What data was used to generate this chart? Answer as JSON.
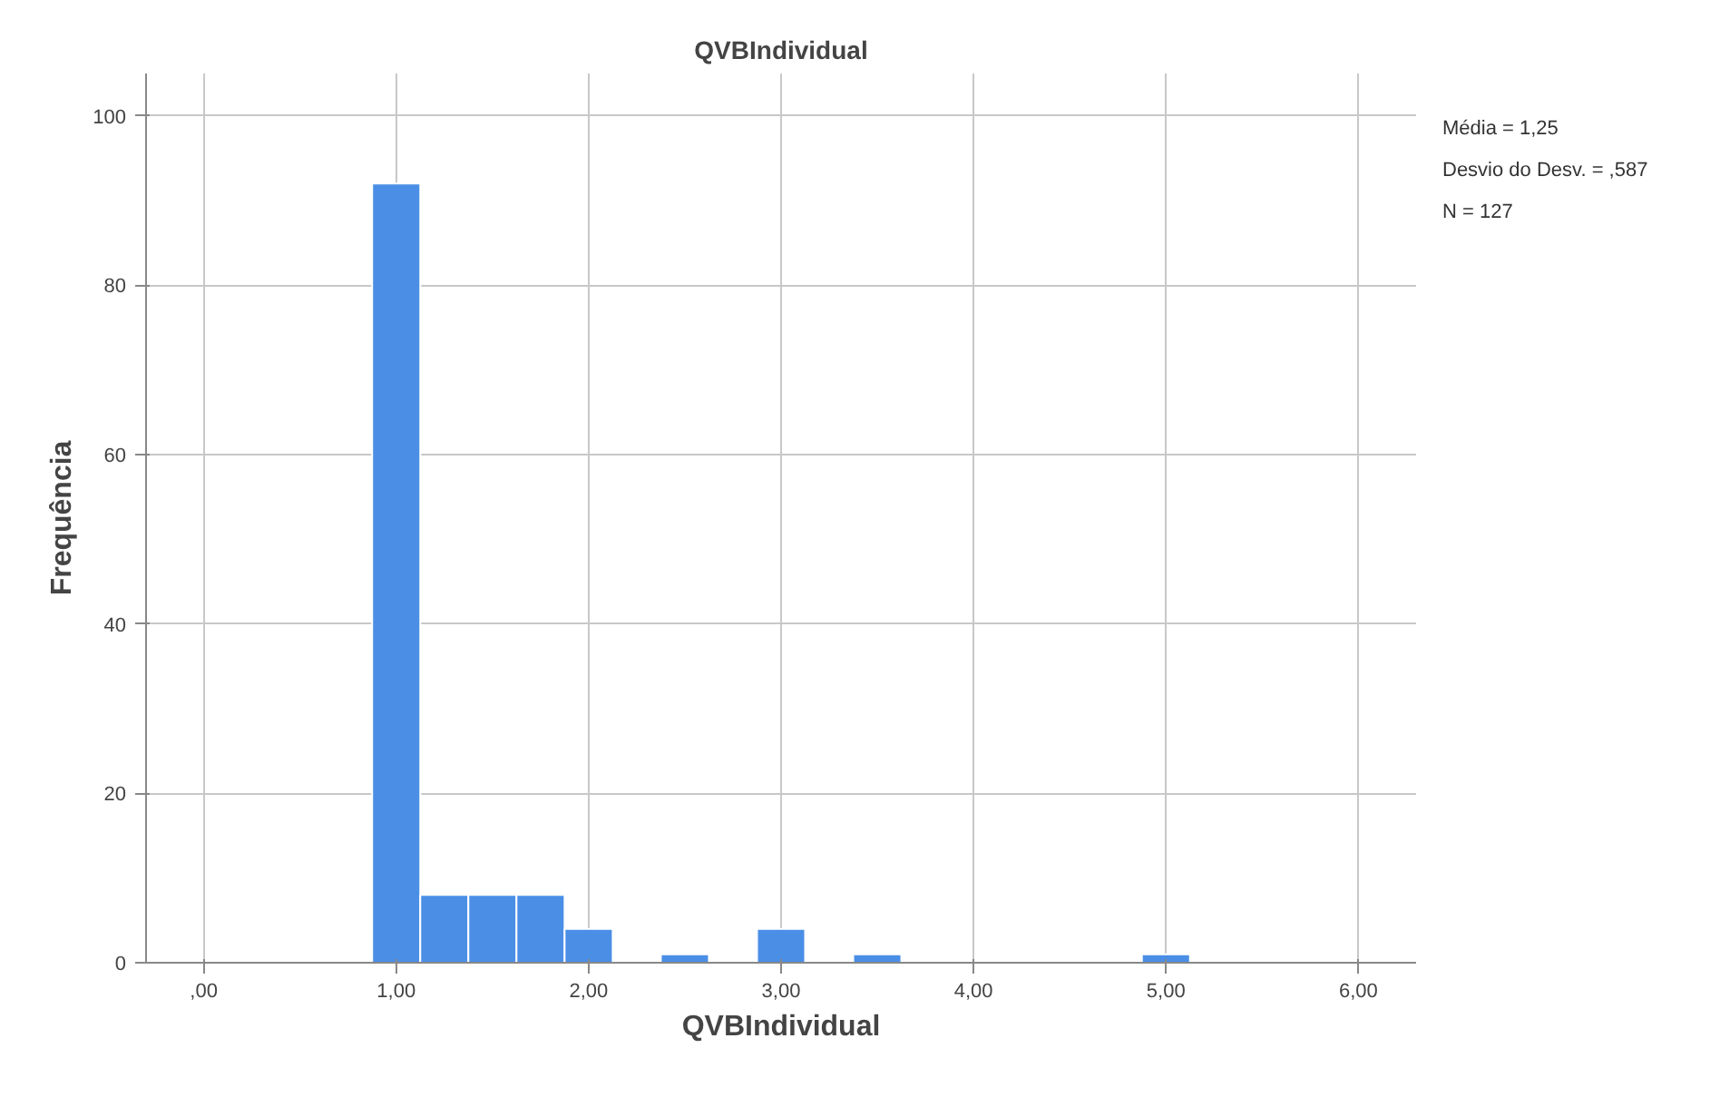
{
  "chart_data": {
    "type": "histogram",
    "title": "QVBIndividual",
    "xlabel": "QVBIndividual",
    "ylabel": "Frequência",
    "bins": [
      0.875,
      1.125,
      1.375,
      1.625,
      1.875,
      2.125,
      2.375,
      2.625,
      2.875,
      3.125,
      3.375,
      3.625,
      3.875,
      4.125,
      4.375,
      4.625,
      4.875,
      5.125
    ],
    "values": [
      92,
      8,
      8,
      8,
      4,
      0,
      1,
      0,
      4,
      0,
      1,
      0,
      0,
      0,
      0,
      0,
      1
    ],
    "color": "#4a8ee6",
    "xlim": [
      -0.3,
      6.3
    ],
    "ylim": [
      0,
      105
    ],
    "xticks": [
      {
        "value": 0,
        "label": ",00"
      },
      {
        "value": 1,
        "label": "1,00"
      },
      {
        "value": 2,
        "label": "2,00"
      },
      {
        "value": 3,
        "label": "3,00"
      },
      {
        "value": 4,
        "label": "4,00"
      },
      {
        "value": 5,
        "label": "5,00"
      },
      {
        "value": 6,
        "label": "6,00"
      }
    ],
    "yticks": [
      0,
      20,
      40,
      60,
      80,
      100
    ],
    "grid": true,
    "annotations": [
      "Média = 1,25",
      "Desvio do Desv. = ,587",
      "N = 127"
    ]
  }
}
